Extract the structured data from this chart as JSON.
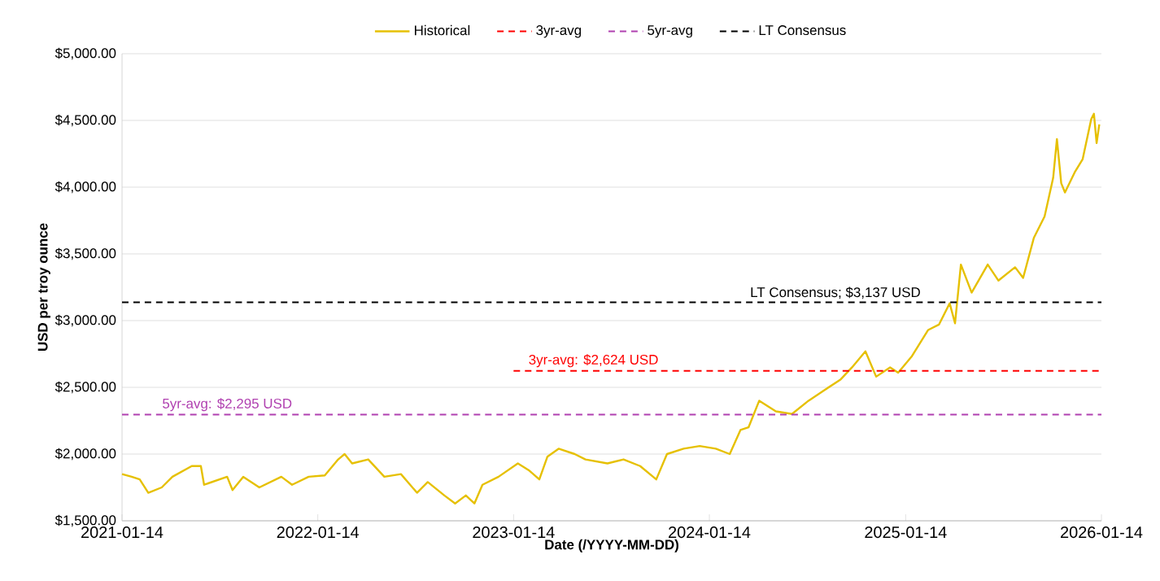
{
  "chart_data": {
    "type": "line",
    "xlabel": "Date (/YYYY-MM-DD)",
    "ylabel": "USD per troy ounce",
    "xlim": [
      "2021-01-14",
      "2026-01-14"
    ],
    "ylim": [
      1500,
      5000
    ],
    "xticks": [
      "2021-01-14",
      "2022-01-14",
      "2023-01-14",
      "2024-01-14",
      "2025-01-14",
      "2026-01-14"
    ],
    "yticks": [
      {
        "value": 1500,
        "label": "$1,500.00"
      },
      {
        "value": 2000,
        "label": "$2,000.00"
      },
      {
        "value": 2500,
        "label": "$2,500.00"
      },
      {
        "value": 3000,
        "label": "$3,000.00"
      },
      {
        "value": 3500,
        "label": "$3,500.00"
      },
      {
        "value": 4000,
        "label": "$4,000.00"
      },
      {
        "value": 4500,
        "label": "$4,500.00"
      },
      {
        "value": 5000,
        "label": "$5,000.00"
      }
    ],
    "grid": "y",
    "legend": "top",
    "series": [
      {
        "name": "Historical",
        "color": "#e6c000",
        "line_style": "solid",
        "x": [
          "2021-01-14",
          "2021-02-01",
          "2021-02-16",
          "2021-03-04",
          "2021-03-29",
          "2021-04-18",
          "2021-05-24",
          "2021-06-10",
          "2021-06-16",
          "2021-07-29",
          "2021-08-08",
          "2021-08-28",
          "2021-09-27",
          "2021-11-07",
          "2021-11-27",
          "2021-12-28",
          "2022-01-27",
          "2022-02-21",
          "2022-03-05",
          "2022-03-19",
          "2022-04-18",
          "2022-05-18",
          "2022-06-18",
          "2022-07-18",
          "2022-08-07",
          "2022-09-07",
          "2022-09-27",
          "2022-10-17",
          "2022-11-02",
          "2022-11-17",
          "2022-12-17",
          "2023-01-22",
          "2023-02-11",
          "2023-03-03",
          "2023-03-18",
          "2023-04-08",
          "2023-05-08",
          "2023-05-28",
          "2023-07-08",
          "2023-08-07",
          "2023-09-07",
          "2023-10-07",
          "2023-10-27",
          "2023-11-27",
          "2023-12-27",
          "2024-01-26",
          "2024-02-21",
          "2024-03-12",
          "2024-03-27",
          "2024-04-16",
          "2024-05-17",
          "2024-06-16",
          "2024-07-17",
          "2024-08-16",
          "2024-09-15",
          "2024-10-06",
          "2024-10-31",
          "2024-11-20",
          "2024-12-16",
          "2024-12-31",
          "2025-01-25",
          "2025-02-25",
          "2025-03-17",
          "2025-04-06",
          "2025-04-16",
          "2025-04-27",
          "2025-05-17",
          "2025-06-16",
          "2025-07-06",
          "2025-08-06",
          "2025-08-21",
          "2025-09-10",
          "2025-09-30",
          "2025-10-16",
          "2025-10-23",
          "2025-10-31",
          "2025-11-07",
          "2025-11-25",
          "2025-12-10",
          "2025-12-26",
          "2025-12-31",
          "2026-01-05",
          "2026-01-10"
        ],
        "values": [
          1850,
          1830,
          1810,
          1710,
          1750,
          1830,
          1910,
          1910,
          1770,
          1830,
          1730,
          1830,
          1750,
          1830,
          1770,
          1830,
          1840,
          1960,
          2000,
          1930,
          1960,
          1830,
          1850,
          1710,
          1790,
          1690,
          1630,
          1690,
          1630,
          1770,
          1830,
          1930,
          1880,
          1810,
          1980,
          2040,
          2000,
          1960,
          1930,
          1960,
          1910,
          1810,
          2000,
          2040,
          2060,
          2040,
          2000,
          2180,
          2200,
          2400,
          2320,
          2300,
          2400,
          2480,
          2560,
          2650,
          2770,
          2580,
          2650,
          2610,
          2730,
          2930,
          2970,
          3130,
          2980,
          3420,
          3210,
          3420,
          3300,
          3400,
          3320,
          3620,
          3780,
          4070,
          4360,
          4030,
          3960,
          4110,
          4210,
          4510,
          4550,
          4330,
          4470
        ]
      },
      {
        "name": "3yr-avg",
        "color": "#ff0000",
        "line_style": "dashed",
        "x": [
          "2023-01-14",
          "2026-01-14"
        ],
        "values": [
          2624,
          2624
        ]
      },
      {
        "name": "5yr-avg",
        "color": "#b040b0",
        "line_style": "dashed",
        "x": [
          "2021-01-14",
          "2026-01-14"
        ],
        "values": [
          2295,
          2295
        ]
      },
      {
        "name": "LT Consensus",
        "color": "#000000",
        "line_style": "dashed",
        "x": [
          "2021-01-14",
          "2026-01-14"
        ],
        "values": [
          3137,
          3137
        ]
      }
    ],
    "annotations": [
      {
        "text": "5yr-avg: $2,295 USD",
        "x": "2021-07-29",
        "y": 2295
      },
      {
        "text": "3yr-avg: $2,624 USD",
        "x": "2023-06-12",
        "y": 2624
      },
      {
        "text": "LT Consensus; $3,137 USD",
        "x": "2024-09-05",
        "y": 3137
      }
    ]
  }
}
